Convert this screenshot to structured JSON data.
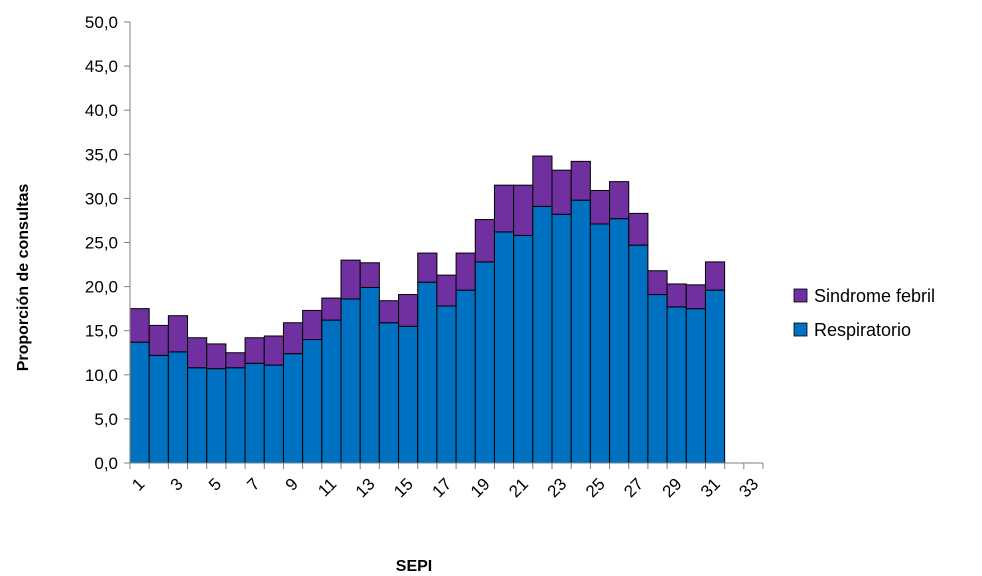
{
  "chart_data": {
    "type": "bar",
    "stacked": true,
    "title": "",
    "xlabel": "SEPI",
    "ylabel": "Proporción de consultas",
    "ylim": [
      0,
      50
    ],
    "y_ticks": [
      "0,0",
      "5,0",
      "10,0",
      "15,0",
      "20,0",
      "25,0",
      "30,0",
      "35,0",
      "40,0",
      "45,0",
      "50,0"
    ],
    "x_tick_labels": [
      "1",
      "3",
      "5",
      "7",
      "9",
      "11",
      "13",
      "15",
      "17",
      "19",
      "21",
      "23",
      "25",
      "27",
      "29",
      "31",
      "33"
    ],
    "x_min": 1,
    "x_max": 33,
    "categories": [
      "1",
      "2",
      "3",
      "4",
      "5",
      "6",
      "7",
      "8",
      "9",
      "10",
      "11",
      "12",
      "13",
      "14",
      "15",
      "16",
      "17",
      "18",
      "19",
      "20",
      "21",
      "22",
      "23",
      "24",
      "25",
      "26",
      "27",
      "28",
      "29",
      "30",
      "31"
    ],
    "grid": false,
    "legend_position": "right",
    "series": [
      {
        "name": "Respiratorio",
        "color": "#0070c0",
        "values": [
          13.7,
          12.2,
          12.6,
          10.8,
          10.7,
          10.8,
          11.3,
          11.1,
          12.4,
          14.0,
          16.2,
          18.6,
          19.9,
          15.9,
          15.5,
          20.5,
          17.8,
          19.6,
          22.8,
          26.2,
          25.8,
          29.1,
          28.2,
          29.8,
          27.1,
          27.7,
          24.7,
          19.1,
          17.7,
          17.5,
          19.6
        ]
      },
      {
        "name": "Sindrome febril",
        "color": "#7030a0",
        "values": [
          3.8,
          3.4,
          4.1,
          3.4,
          2.8,
          1.7,
          2.9,
          3.3,
          3.5,
          3.3,
          2.5,
          4.4,
          2.8,
          2.5,
          3.6,
          3.3,
          3.5,
          4.2,
          4.8,
          5.3,
          5.7,
          5.7,
          5.0,
          4.4,
          3.8,
          4.2,
          3.6,
          2.7,
          2.6,
          2.7,
          3.2
        ]
      }
    ],
    "legend_order": [
      "Sindrome febril",
      "Respiratorio"
    ]
  }
}
